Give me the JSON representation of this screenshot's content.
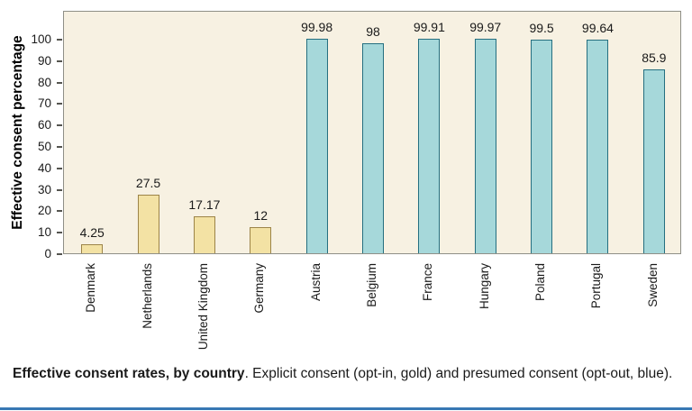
{
  "chart_data": {
    "type": "bar",
    "title": "",
    "xlabel": "",
    "ylabel": "Effective consent percentage",
    "ylim": [
      0,
      113
    ],
    "yticks": [
      0,
      10,
      20,
      30,
      40,
      50,
      60,
      70,
      80,
      90,
      100
    ],
    "grid": false,
    "legend": "none (color-coded groups explained in caption)",
    "categories": [
      "Denmark",
      "Netherlands",
      "United Kingdom",
      "Germany",
      "Austria",
      "Belgium",
      "France",
      "Hungary",
      "Poland",
      "Portugal",
      "Sweden"
    ],
    "values": [
      4.25,
      27.5,
      17.17,
      12,
      99.98,
      98,
      99.91,
      99.97,
      99.5,
      99.64,
      85.9
    ],
    "bars": [
      {
        "label": "Denmark",
        "value": 4.25,
        "display": "4.25",
        "group": "gold"
      },
      {
        "label": "Netherlands",
        "value": 27.5,
        "display": "27.5",
        "group": "gold"
      },
      {
        "label": "United Kingdom",
        "value": 17.17,
        "display": "17.17",
        "group": "gold"
      },
      {
        "label": "Germany",
        "value": 12,
        "display": "12",
        "group": "gold"
      },
      {
        "label": "Austria",
        "value": 99.98,
        "display": "99.98",
        "group": "blue"
      },
      {
        "label": "Belgium",
        "value": 98,
        "display": "98",
        "group": "blue"
      },
      {
        "label": "France",
        "value": 99.91,
        "display": "99.91",
        "group": "blue"
      },
      {
        "label": "Hungary",
        "value": 99.97,
        "display": "99.97",
        "group": "blue"
      },
      {
        "label": "Poland",
        "value": 99.5,
        "display": "99.5",
        "group": "blue"
      },
      {
        "label": "Portugal",
        "value": 99.64,
        "display": "99.64",
        "group": "blue"
      },
      {
        "label": "Sweden",
        "value": 85.9,
        "display": "85.9",
        "group": "blue"
      }
    ],
    "colors": {
      "gold_fill": "#f3e2a4",
      "gold_border": "#9c8448",
      "blue_fill": "#a6d8da",
      "blue_border": "#256f80",
      "plot_bg": "#f7f1e2",
      "rule": "#3878b4"
    }
  },
  "caption": {
    "bold": "Effective consent rates, by country",
    "rest": ". Explicit consent (opt-in, gold) and presumed consent (opt-out, blue)."
  }
}
